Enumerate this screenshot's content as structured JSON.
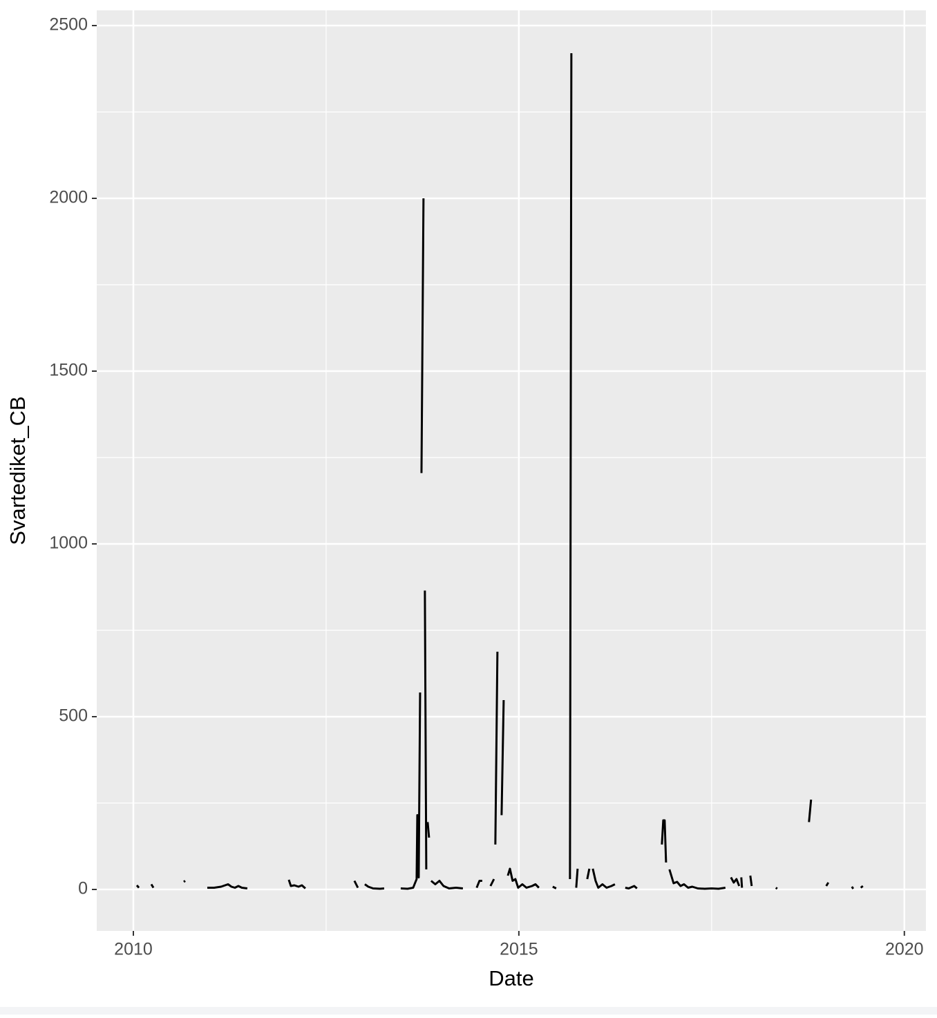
{
  "chart_data": {
    "type": "line",
    "xlabel": "Date",
    "ylabel": "Svartediket_CB",
    "x": [
      2010.045,
      2010.072,
      null,
      2010.233,
      2010.26,
      null,
      2010.654,
      2010.672,
      null,
      2010.959,
      2011.048,
      2011.138,
      2011.228,
      2011.272,
      2011.317,
      2011.362,
      2011.407,
      2011.478,
      null,
      2012.016,
      2012.043,
      2012.088,
      2012.142,
      2012.186,
      2012.231,
      null,
      2012.867,
      2012.912,
      null,
      2013.002,
      2013.047,
      2013.109,
      2013.199,
      2013.253,
      null,
      2013.468,
      2013.557,
      2013.629,
      2013.674,
      2013.683,
      2013.701,
      2013.719,
      null,
      2013.737,
      2013.763,
      null,
      2013.781,
      2013.799,
      null,
      2013.817,
      2013.835,
      null,
      2013.862,
      2013.916,
      2013.97,
      2014.023,
      2014.095,
      2014.185,
      2014.274,
      null,
      2014.453,
      2014.489,
      2014.525,
      null,
      2014.632,
      2014.677,
      null,
      2014.695,
      2014.722,
      null,
      2014.776,
      2014.803,
      null,
      2014.857,
      2014.884,
      2014.919,
      2014.955,
      2014.991,
      2015.045,
      2015.099,
      2015.171,
      2015.215,
      2015.26,
      null,
      2015.439,
      2015.484,
      null,
      2015.663,
      2015.681,
      null,
      2015.744,
      2015.762,
      null,
      2015.887,
      2015.914,
      null,
      2015.959,
      2015.995,
      2016.03,
      2016.084,
      2016.138,
      2016.201,
      2016.246,
      null,
      2016.38,
      2016.425,
      2016.496,
      2016.532,
      null,
      2016.855,
      2016.873,
      2016.891,
      2016.909,
      null,
      2016.953,
      2017.007,
      2017.052,
      2017.097,
      2017.142,
      2017.195,
      2017.249,
      2017.321,
      2017.41,
      2017.5,
      2017.59,
      2017.679,
      null,
      2017.751,
      2017.787,
      2017.823,
      2017.858,
      null,
      2017.885,
      2017.894,
      null,
      2018.002,
      2018.02,
      null,
      2018.333,
      2018.351,
      null,
      2018.763,
      2018.79,
      null,
      2018.987,
      2019.014,
      null,
      2019.319,
      2019.337,
      null,
      2019.435,
      2019.462
    ],
    "series": [
      {
        "name": "Svartediket_CB",
        "color": "#000000",
        "values": [
          12,
          5,
          null,
          15,
          5,
          null,
          22,
          25,
          null,
          5,
          5,
          8,
          15,
          8,
          5,
          10,
          5,
          3,
          null,
          28,
          10,
          12,
          8,
          12,
          3,
          null,
          25,
          5,
          null,
          15,
          8,
          3,
          2,
          3,
          null,
          3,
          2,
          5,
          30,
          215,
          35,
          570,
          null,
          1205,
          2000,
          null,
          865,
          58,
          null,
          195,
          150,
          null,
          25,
          15,
          25,
          10,
          3,
          5,
          3,
          null,
          5,
          25,
          25,
          null,
          10,
          30,
          null,
          130,
          688,
          null,
          215,
          548,
          null,
          40,
          60,
          25,
          30,
          5,
          15,
          5,
          10,
          15,
          5,
          null,
          8,
          3,
          null,
          30,
          2420,
          null,
          5,
          60,
          null,
          30,
          60,
          null,
          60,
          25,
          5,
          15,
          5,
          10,
          15,
          null,
          5,
          3,
          10,
          3,
          null,
          130,
          200,
          200,
          78,
          null,
          58,
          18,
          22,
          10,
          15,
          5,
          8,
          3,
          2,
          3,
          2,
          5,
          null,
          35,
          20,
          30,
          10,
          null,
          35,
          5,
          null,
          40,
          10,
          null,
          5,
          2,
          null,
          195,
          260,
          null,
          10,
          20,
          null,
          8,
          2,
          null,
          5,
          10
        ]
      }
    ],
    "xlim": [
      2009.525,
      2020.28
    ],
    "xticks": [
      2010,
      2015,
      2020
    ],
    "ylim": [
      -120,
      2544
    ],
    "yticks": [
      0,
      500,
      1000,
      1500,
      2000,
      2500
    ],
    "grid": true
  }
}
